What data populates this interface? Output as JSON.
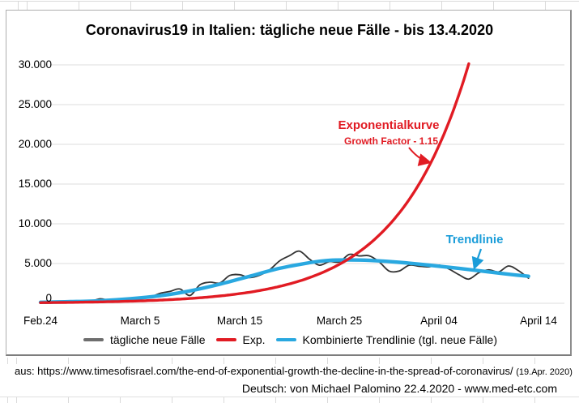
{
  "chart_data": {
    "type": "line",
    "title": "Coronavirus19 in Italien: tägliche neue Fälle - bis 13.4.2020",
    "xlabel": "",
    "ylabel": "",
    "grid": "horizontal",
    "legend_position": "bottom",
    "x_axis": {
      "tick_labels": [
        "Feb.24",
        "March 5",
        "March 15",
        "March 25",
        "April 04",
        "April 14"
      ],
      "tick_day_offsets": [
        0,
        10,
        20,
        30,
        40,
        50
      ]
    },
    "y_axis": {
      "tick_labels": [
        "0",
        "5.000",
        "10.000",
        "15.000",
        "20.000",
        "25.000",
        "30.000"
      ],
      "min": 0,
      "max": 30000,
      "step": 5000
    },
    "ylim": [
      0,
      30000
    ],
    "series": [
      {
        "name": "tägliche neue Fälle",
        "kind": "daily-line",
        "color": "#333333",
        "legend_color": "#6e6e6e",
        "stroke_width": 1.8,
        "start_day": 0,
        "values": [
          221,
          93,
          78,
          250,
          238,
          240,
          561,
          347,
          466,
          587,
          769,
          778,
          1247,
          1492,
          1797,
          977,
          2313,
          2651,
          2547,
          3497,
          3590,
          3233,
          3526,
          4207,
          5322,
          5986,
          6557,
          5560,
          4789,
          5249,
          5210,
          6153,
          5959,
          5974,
          5217,
          4050,
          4053,
          4782,
          4668,
          4585,
          4805,
          4316,
          3599,
          3039,
          3836,
          4204,
          3951,
          4694,
          4092,
          3153
        ]
      },
      {
        "name": "Exp.",
        "kind": "exponential",
        "color": "#e11b23",
        "legend_color": "#e11b23",
        "stroke_width": 3.4,
        "start_value": 74,
        "growth_factor": 1.15,
        "clip_max": 30800
      },
      {
        "name": "Kombinierte Trendlinie (tgl. neue Fälle)",
        "kind": "smooth-trend",
        "color": "#29a8e0",
        "legend_color": "#29a8e0",
        "stroke_width": 4.4,
        "days": [
          0,
          3,
          6,
          9,
          12,
          15,
          18,
          21,
          24,
          27,
          29,
          31,
          33,
          36,
          39,
          42,
          45,
          47,
          49
        ],
        "values": [
          120,
          200,
          320,
          560,
          950,
          1550,
          2400,
          3400,
          4400,
          5100,
          5400,
          5450,
          5400,
          5150,
          4800,
          4400,
          3950,
          3650,
          3400
        ]
      }
    ],
    "annotations": [
      {
        "text": "Exponentialkurve",
        "color": "#e11b23"
      },
      {
        "text": "Growth Factor - 1.15",
        "color": "#e11b23"
      },
      {
        "text": "Trendlinie",
        "color": "#1b9dd9"
      }
    ]
  },
  "footer": {
    "source": "aus: https://www.timesofisrael.com/the-end-of-exponential-growth-the-decline-in-the-spread-of-coronavirus/",
    "source_date": "(19.Apr. 2020)",
    "credit": "Deutsch: von Michael Palomino 22.4.2020 - www.med-etc.com"
  }
}
